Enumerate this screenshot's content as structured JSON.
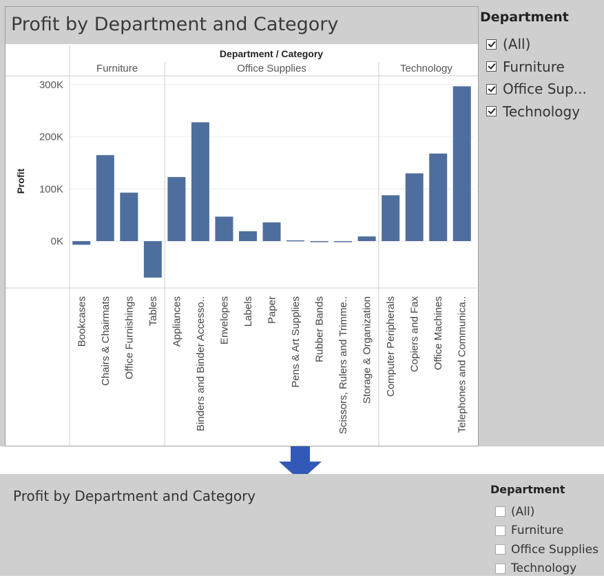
{
  "top_view": {
    "title": "Profit by Department and Category",
    "filter": {
      "title": "Department",
      "items": [
        {
          "label": "(All)",
          "checked": true
        },
        {
          "label": "Furniture",
          "checked": true
        },
        {
          "label": "Office Sup...",
          "checked": true
        },
        {
          "label": "Technology",
          "checked": true
        }
      ]
    }
  },
  "bottom_view": {
    "title": "Profit by Department and Category",
    "filter": {
      "title": "Department",
      "items": [
        {
          "label": "(All)",
          "checked": false
        },
        {
          "label": "Furniture",
          "checked": false
        },
        {
          "label": "Office Supplies",
          "checked": false
        },
        {
          "label": "Technology",
          "checked": false
        }
      ]
    }
  },
  "chart_data": {
    "type": "bar",
    "header_title": "Department / Category",
    "ylabel": "Profit",
    "ylim": [
      -70000,
      305000
    ],
    "yticks": [
      0,
      100000,
      200000,
      300000
    ],
    "ytick_labels": [
      "0K",
      "100K",
      "200K",
      "300K"
    ],
    "grid": true,
    "bar_color": "#4e6f9e",
    "groups": [
      {
        "name": "Furniture",
        "categories": [
          "Bookcases",
          "Chairs & Chairmats",
          "Office Furnishings",
          "Tables"
        ],
        "values": [
          -7000,
          165000,
          93000,
          -70000
        ]
      },
      {
        "name": "Office Supplies",
        "categories": [
          "Appliances",
          "Binders and Binder Accesso..",
          "Envelopes",
          "Labels",
          "Paper",
          "Pens & Art Supplies",
          "Rubber Bands",
          "Scissors, Rulers and Trimme..",
          "Storage & Organization"
        ],
        "values": [
          123000,
          228000,
          47000,
          19000,
          36000,
          1500,
          -2000,
          -1000,
          9000
        ]
      },
      {
        "name": "Technology",
        "categories": [
          "Computer Peripherals",
          "Copiers and Fax",
          "Office Machines",
          "Telephones and Communica.."
        ],
        "values": [
          88000,
          130000,
          168000,
          297000
        ]
      }
    ]
  }
}
